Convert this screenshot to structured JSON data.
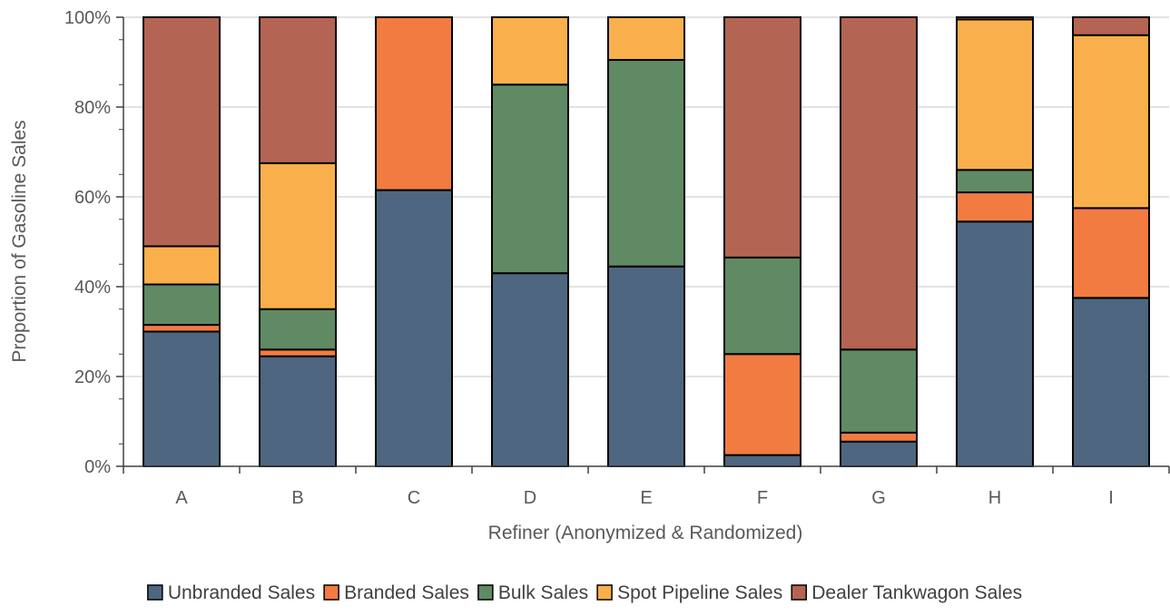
{
  "chart_data": {
    "type": "bar",
    "stacked": true,
    "title": "",
    "xlabel": "Refiner (Anonymized & Randomized)",
    "ylabel": "Proportion of Gasoline Sales",
    "ylim": [
      0,
      100
    ],
    "y_ticks": [
      "0%",
      "20%",
      "40%",
      "60%",
      "80%",
      "100%"
    ],
    "categories": [
      "A",
      "B",
      "C",
      "D",
      "E",
      "F",
      "G",
      "H",
      "I"
    ],
    "series": [
      {
        "name": "Unbranded Sales",
        "color": "#4e6680",
        "values": [
          30,
          24.5,
          61.5,
          43,
          44.5,
          2.5,
          5.5,
          54.5,
          37.5
        ]
      },
      {
        "name": "Branded Sales",
        "color": "#f27b41",
        "values": [
          1.5,
          1.5,
          38.5,
          0,
          0,
          22.5,
          2,
          6.5,
          20
        ]
      },
      {
        "name": "Bulk Sales",
        "color": "#5f8a63",
        "values": [
          9,
          9,
          0,
          42,
          46,
          21.5,
          18.5,
          5,
          0
        ]
      },
      {
        "name": "Spot Pipeline Sales",
        "color": "#f9b04c",
        "values": [
          8.5,
          32.5,
          0,
          15,
          9.5,
          0,
          0,
          33.5,
          38.5
        ]
      },
      {
        "name": "Dealer Tankwagon Sales",
        "color": "#b46453",
        "values": [
          51,
          32.5,
          0,
          0,
          0,
          53.5,
          74,
          0.5,
          4
        ]
      }
    ],
    "grid": true,
    "legend_position": "bottom"
  }
}
